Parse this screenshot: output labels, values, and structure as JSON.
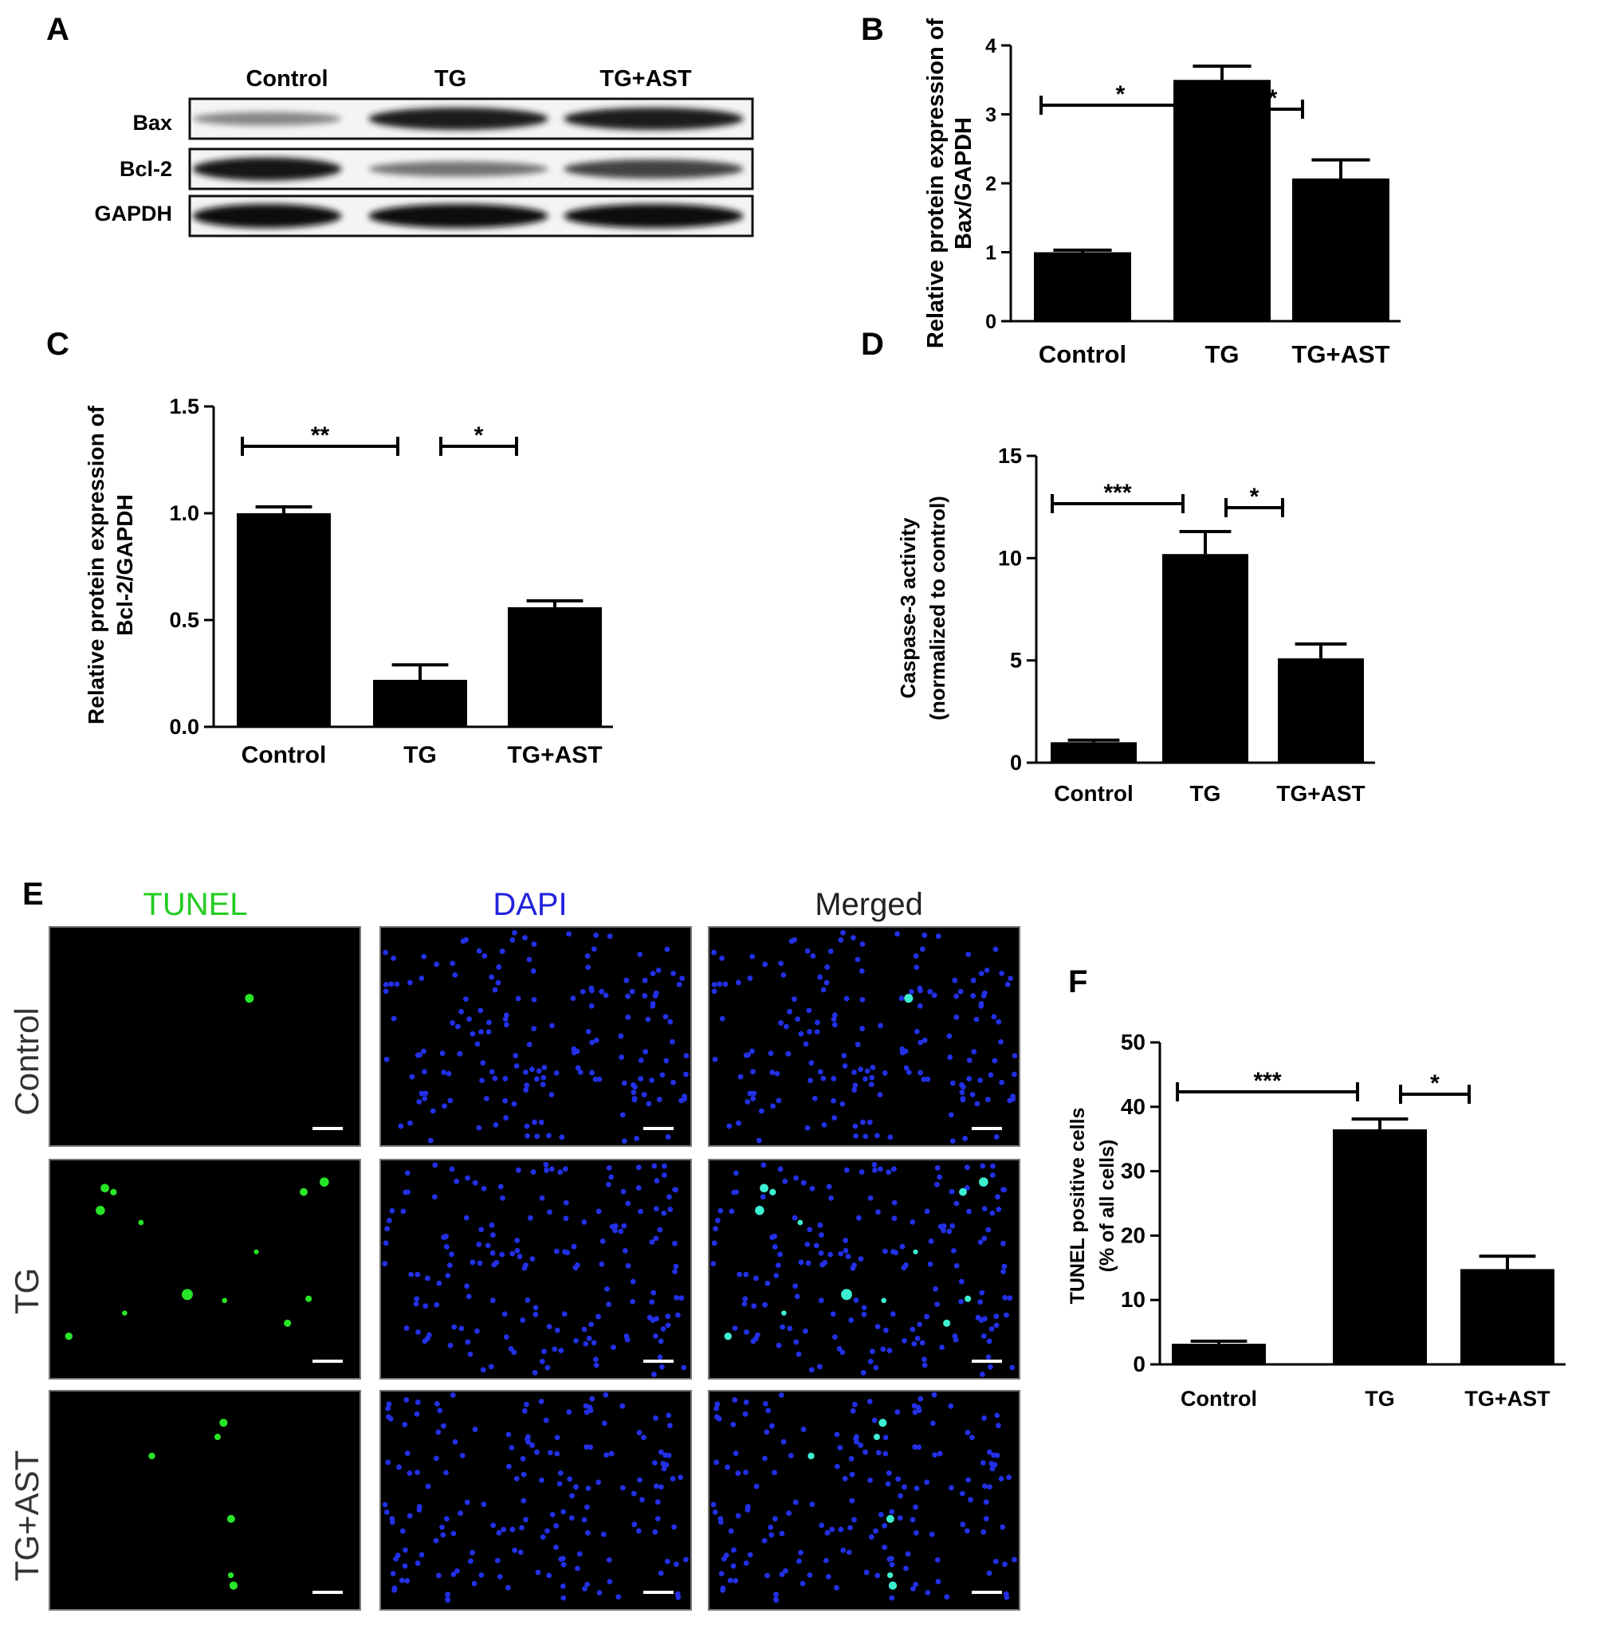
{
  "panels": {
    "A": {
      "letter": "A",
      "lanes": [
        "Control",
        "TG",
        "TG+AST"
      ],
      "rows": [
        {
          "label": "Bax",
          "intensities": [
            0.35,
            0.9,
            0.9
          ]
        },
        {
          "label": "Bcl-2",
          "intensities": [
            0.95,
            0.45,
            0.7
          ]
        },
        {
          "label": "GAPDH",
          "intensities": [
            1.0,
            1.0,
            1.0
          ]
        }
      ]
    },
    "E": {
      "letter": "E",
      "columns": [
        {
          "label": "TUNEL",
          "color": "#22cc22"
        },
        {
          "label": "DAPI",
          "color": "#2222dd"
        },
        {
          "label": "Merged",
          "color": "#222222"
        }
      ],
      "rows": [
        "Control",
        "TG",
        "TG+AST"
      ],
      "tunel_green_spots": [
        1,
        13,
        6
      ]
    },
    "F": {
      "letter": "F"
    }
  },
  "chart_data": [
    {
      "panel": "B",
      "type": "bar",
      "categories": [
        "Control",
        "TG",
        "TG+AST"
      ],
      "values": [
        1.0,
        3.5,
        2.07
      ],
      "errors": [
        0.03,
        0.2,
        0.27
      ],
      "ylabel": [
        "Relative protein expression of",
        "Bax/GAPDH"
      ],
      "ylim": [
        0,
        4
      ],
      "yticks": [
        "0",
        "1",
        "2",
        "3",
        "4"
      ],
      "significance": [
        {
          "from": 0,
          "to": 1,
          "label": "*"
        },
        {
          "from": 1,
          "to": 2,
          "label": "*"
        }
      ]
    },
    {
      "panel": "C",
      "type": "bar",
      "categories": [
        "Control",
        "TG",
        "TG+AST"
      ],
      "values": [
        1.0,
        0.22,
        0.56
      ],
      "errors": [
        0.03,
        0.07,
        0.03
      ],
      "ylabel": [
        "Relative protein expression of",
        "Bcl-2/GAPDH"
      ],
      "ylim": [
        0,
        1.5
      ],
      "yticks": [
        "0.0",
        "0.5",
        "1.0",
        "1.5"
      ],
      "significance": [
        {
          "from": 0,
          "to": 1,
          "label": "**"
        },
        {
          "from": 1,
          "to": 2,
          "label": "*"
        }
      ]
    },
    {
      "panel": "D",
      "type": "bar",
      "categories": [
        "Control",
        "TG",
        "TG+AST"
      ],
      "values": [
        1.0,
        10.2,
        5.1
      ],
      "errors": [
        0.1,
        1.1,
        0.7
      ],
      "ylabel": [
        "Caspase-3 activity",
        "(normalized to control)"
      ],
      "ylim": [
        0,
        15
      ],
      "yticks": [
        "0",
        "5",
        "10",
        "15"
      ],
      "significance": [
        {
          "from": 0,
          "to": 1,
          "label": "***"
        },
        {
          "from": 1,
          "to": 2,
          "label": "*"
        }
      ]
    },
    {
      "panel": "F",
      "type": "bar",
      "categories": [
        "Control",
        "TG",
        "TG+AST"
      ],
      "values": [
        3.2,
        36.5,
        14.8
      ],
      "errors": [
        0.4,
        1.6,
        2.0
      ],
      "ylabel": [
        "TUNEL positive cells",
        "(% of all cells)"
      ],
      "ylim": [
        0,
        50
      ],
      "yticks": [
        "0",
        "10",
        "20",
        "30",
        "40",
        "50"
      ],
      "significance": [
        {
          "from": 0,
          "to": 1,
          "label": "***"
        },
        {
          "from": 1,
          "to": 2,
          "label": "*"
        }
      ]
    }
  ]
}
